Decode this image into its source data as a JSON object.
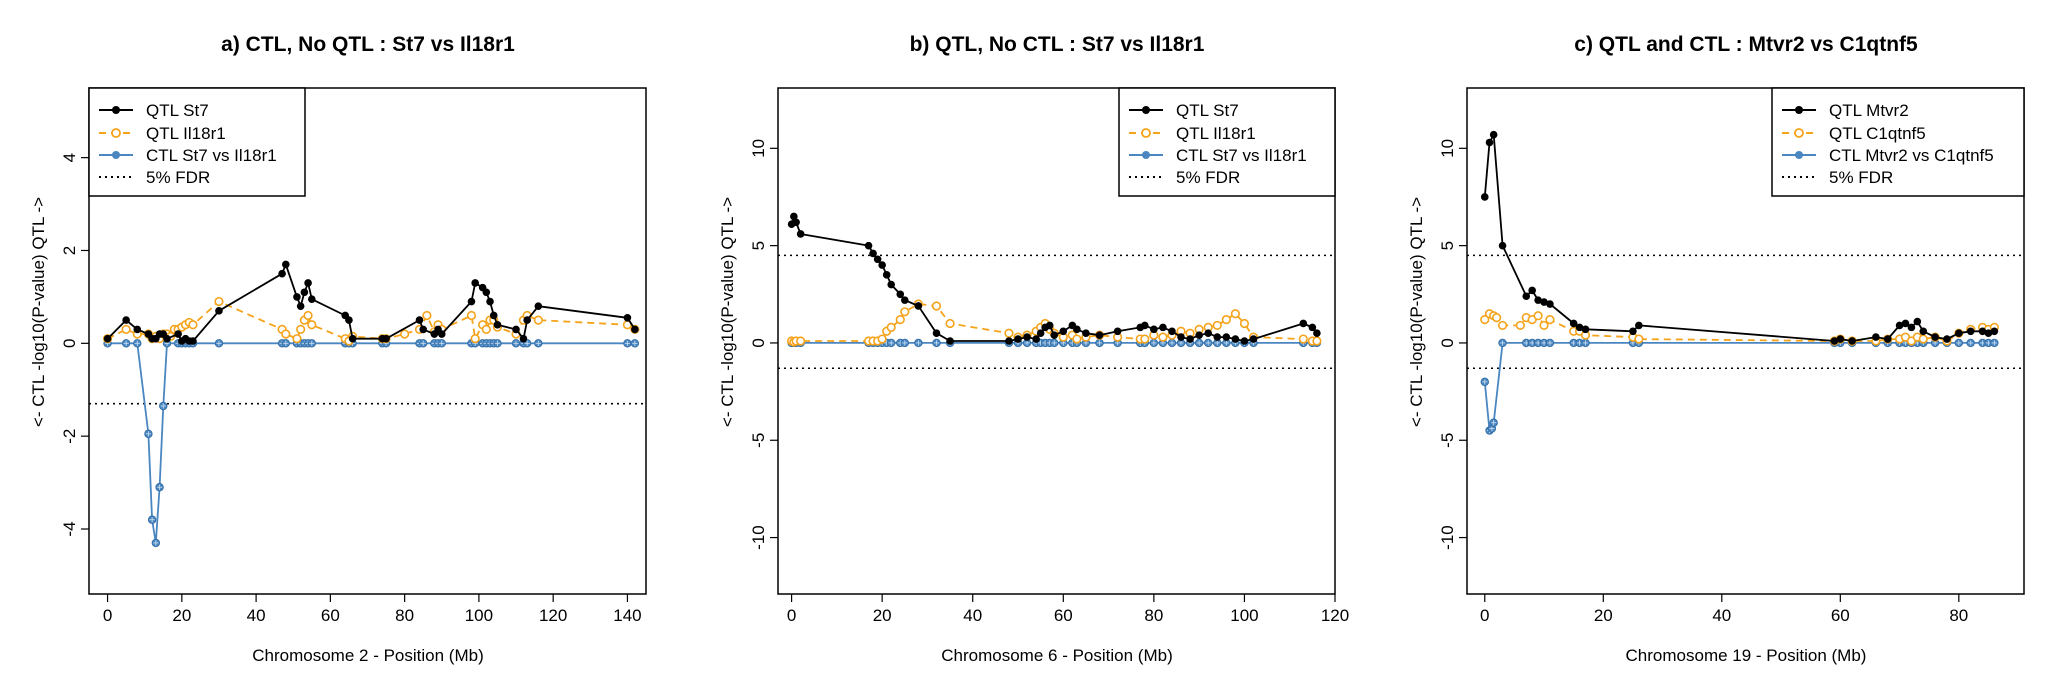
{
  "figure": {
    "ylabel": "<- CTL  -log10(P-value)   QTL ->",
    "legend_fdr": "5% FDR"
  },
  "chart_data": [
    {
      "type": "line",
      "title": "a) CTL, No QTL : St7 vs Il18r1",
      "xlabel": "Chromosome 2 - Position (Mb)",
      "ylabel": "<- CTL  -log10(P-value)   QTL ->",
      "xlim": [
        -5,
        145
      ],
      "ylim": [
        -5.4,
        5.5
      ],
      "xticks": [
        0,
        20,
        40,
        60,
        80,
        100,
        120,
        140
      ],
      "yticks": [
        -4,
        -2,
        0,
        2,
        4
      ],
      "grid": false,
      "legend_position": "top-left",
      "fdr": [
        -1.3
      ],
      "series": [
        {
          "name": "QTL St7",
          "color": "#000000",
          "style": "solid",
          "marker": "filled",
          "x": [
            0,
            5,
            8,
            11,
            12,
            13,
            14,
            15,
            16,
            19,
            20,
            21,
            22,
            23,
            30,
            47,
            48,
            51,
            52,
            53,
            54,
            55,
            64,
            65,
            66,
            74,
            75,
            84,
            85,
            88,
            89,
            90,
            98,
            99,
            101,
            102,
            103,
            104,
            105,
            110,
            112,
            113,
            116,
            140,
            142
          ],
          "y": [
            0.1,
            0.5,
            0.3,
            0.2,
            0.1,
            0.1,
            0.2,
            0.2,
            0.1,
            0.2,
            0.05,
            0.1,
            0.05,
            0.05,
            0.7,
            1.5,
            1.7,
            1.0,
            0.8,
            1.1,
            1.3,
            0.95,
            0.6,
            0.5,
            0.1,
            0.1,
            0.1,
            0.5,
            0.3,
            0.2,
            0.3,
            0.2,
            0.9,
            1.3,
            1.2,
            1.1,
            0.9,
            0.6,
            0.4,
            0.3,
            0.1,
            0.5,
            0.8,
            0.55,
            0.3
          ]
        },
        {
          "name": "QTL Il18r1",
          "color": "#f5a31a",
          "style": "dashed",
          "marker": "open",
          "x": [
            0,
            5,
            8,
            11,
            12,
            13,
            14,
            15,
            16,
            17,
            18,
            19,
            20,
            21,
            22,
            23,
            30,
            47,
            48,
            51,
            52,
            53,
            54,
            55,
            64,
            65,
            66,
            74,
            75,
            80,
            84,
            86,
            88,
            89,
            90,
            98,
            99,
            101,
            102,
            103,
            104,
            105,
            110,
            112,
            113,
            116,
            140,
            142
          ],
          "y": [
            0.1,
            0.3,
            0.2,
            0.2,
            0.1,
            0.15,
            0.1,
            0.2,
            0.2,
            0.15,
            0.3,
            0.3,
            0.35,
            0.4,
            0.45,
            0.4,
            0.9,
            0.3,
            0.2,
            0.1,
            0.3,
            0.5,
            0.6,
            0.4,
            0.1,
            0.05,
            0.15,
            0.1,
            0.1,
            0.2,
            0.3,
            0.6,
            0.25,
            0.4,
            0.3,
            0.6,
            0.1,
            0.4,
            0.3,
            0.5,
            0.5,
            0.35,
            0.2,
            0.5,
            0.6,
            0.5,
            0.4,
            0.3
          ]
        },
        {
          "name": "CTL St7 vs Il18r1",
          "color": "#4a86c0",
          "style": "solid",
          "marker": "crossed",
          "x": [
            0,
            5,
            8,
            11,
            12,
            13,
            14,
            15,
            16,
            19,
            20,
            21,
            22,
            23,
            30,
            47,
            48,
            51,
            52,
            53,
            54,
            55,
            64,
            65,
            66,
            74,
            75,
            84,
            85,
            88,
            89,
            90,
            98,
            99,
            101,
            102,
            103,
            104,
            105,
            110,
            112,
            113,
            116,
            140,
            142
          ],
          "y": [
            0,
            0,
            0,
            -1.95,
            -3.8,
            -4.3,
            -3.1,
            -1.35,
            0,
            0,
            0,
            0,
            0,
            0,
            0,
            0,
            0,
            0,
            0,
            0,
            0,
            0,
            0,
            0,
            0,
            0,
            0,
            0,
            0,
            0,
            0,
            0,
            0,
            0,
            0,
            0,
            0,
            0,
            0,
            0,
            0,
            0,
            0,
            0,
            0
          ]
        }
      ]
    },
    {
      "type": "line",
      "title": "b) QTL, No CTL : St7 vs Il18r1",
      "xlabel": "Chromosome 6 - Position (Mb)",
      "ylabel": "<- CTL  -log10(P-value)   QTL ->",
      "xlim": [
        -3,
        120
      ],
      "ylim": [
        -12.9,
        13.1
      ],
      "xticks": [
        0,
        20,
        40,
        60,
        80,
        100,
        120
      ],
      "yticks": [
        -10,
        -5,
        0,
        5,
        10
      ],
      "grid": false,
      "legend_position": "top-right",
      "fdr": [
        4.5,
        -1.3
      ],
      "series": [
        {
          "name": "QTL St7",
          "color": "#000000",
          "style": "solid",
          "marker": "filled",
          "x": [
            0,
            0.5,
            1,
            2,
            17,
            18,
            19,
            20,
            21,
            22,
            24,
            25,
            28,
            32,
            35,
            48,
            50,
            52,
            54,
            55,
            56,
            57,
            58,
            60,
            62,
            63,
            65,
            68,
            72,
            77,
            78,
            80,
            82,
            84,
            86,
            88,
            90,
            92,
            94,
            96,
            98,
            100,
            102,
            113,
            115,
            116
          ],
          "y": [
            6.1,
            6.5,
            6.2,
            5.6,
            5.0,
            4.6,
            4.3,
            4.0,
            3.5,
            3.0,
            2.5,
            2.2,
            1.9,
            0.5,
            0.1,
            0.1,
            0.2,
            0.3,
            0.2,
            0.5,
            0.8,
            0.9,
            0.4,
            0.6,
            0.9,
            0.7,
            0.5,
            0.4,
            0.6,
            0.8,
            0.9,
            0.7,
            0.8,
            0.6,
            0.3,
            0.2,
            0.4,
            0.5,
            0.3,
            0.3,
            0.2,
            0.1,
            0.2,
            1.0,
            0.8,
            0.5
          ]
        },
        {
          "name": "QTL Il18r1",
          "color": "#f5a31a",
          "style": "dashed",
          "marker": "open",
          "x": [
            0,
            0.5,
            1,
            2,
            17,
            18,
            19,
            20,
            21,
            22,
            24,
            25,
            28,
            32,
            35,
            48,
            50,
            52,
            54,
            55,
            56,
            57,
            58,
            60,
            62,
            63,
            65,
            68,
            72,
            77,
            78,
            80,
            82,
            84,
            86,
            88,
            90,
            92,
            94,
            96,
            98,
            100,
            102,
            113,
            115,
            116
          ],
          "y": [
            0.1,
            0.05,
            0.1,
            0.1,
            0.1,
            0.1,
            0.1,
            0.2,
            0.6,
            0.8,
            1.2,
            1.6,
            2.0,
            1.9,
            1.0,
            0.5,
            0.3,
            0.4,
            0.6,
            0.8,
            1.0,
            0.7,
            0.5,
            0.3,
            0.4,
            0.2,
            0.3,
            0.4,
            0.3,
            0.2,
            0.2,
            0.4,
            0.3,
            0.4,
            0.6,
            0.5,
            0.7,
            0.8,
            0.9,
            1.2,
            1.5,
            1.0,
            0.3,
            0.2,
            0.1,
            0.1
          ]
        },
        {
          "name": "CTL St7 vs Il18r1",
          "color": "#4a86c0",
          "style": "solid",
          "marker": "crossed",
          "x": [
            0,
            0.5,
            1,
            2,
            17,
            18,
            19,
            20,
            21,
            22,
            24,
            25,
            28,
            32,
            35,
            48,
            50,
            52,
            54,
            55,
            56,
            57,
            58,
            60,
            62,
            63,
            65,
            68,
            72,
            77,
            78,
            80,
            82,
            84,
            86,
            88,
            90,
            92,
            94,
            96,
            98,
            100,
            102,
            113,
            115,
            116
          ],
          "y": [
            0,
            0,
            0,
            0,
            0,
            0,
            0,
            0,
            0,
            0,
            0,
            0,
            0,
            0,
            0,
            0,
            0,
            0,
            0,
            0,
            0,
            0,
            0,
            0,
            0,
            0,
            0,
            0,
            0,
            0,
            0,
            0,
            0,
            0,
            0,
            0,
            0,
            0,
            0,
            0,
            0,
            0,
            0,
            0,
            0,
            0
          ]
        }
      ]
    },
    {
      "type": "line",
      "title": "c) QTL and CTL : Mtvr2 vs C1qtnf5",
      "xlabel": "Chromosome 19 - Position (Mb)",
      "ylabel": "<- CTL  -log10(P-value)   QTL ->",
      "xlim": [
        -3,
        91
      ],
      "ylim": [
        -12.9,
        13.1
      ],
      "xticks": [
        0,
        20,
        40,
        60,
        80
      ],
      "yticks": [
        -10,
        -5,
        0,
        5,
        10
      ],
      "grid": false,
      "legend_position": "top-right",
      "fdr": [
        4.5,
        -1.3
      ],
      "series": [
        {
          "name": "QTL Mtvr2",
          "color": "#000000",
          "style": "solid",
          "marker": "filled",
          "x": [
            0,
            0.8,
            1.5,
            3,
            7,
            8,
            9,
            10,
            11,
            15,
            16,
            17,
            25,
            26,
            59,
            60,
            62,
            66,
            68,
            70,
            71,
            72,
            73,
            74,
            76,
            78,
            80,
            82,
            84,
            85,
            86
          ],
          "y": [
            7.5,
            10.3,
            10.7,
            5.0,
            2.4,
            2.7,
            2.2,
            2.1,
            2.0,
            1.0,
            0.8,
            0.7,
            0.6,
            0.9,
            0.1,
            0.2,
            0.1,
            0.3,
            0.2,
            0.9,
            1.0,
            0.8,
            1.1,
            0.6,
            0.3,
            0.2,
            0.5,
            0.6,
            0.6,
            0.5,
            0.6
          ]
        },
        {
          "name": "QTL C1qtnf5",
          "color": "#f5a31a",
          "style": "dashed",
          "marker": "open",
          "x": [
            0,
            0.8,
            1.5,
            2,
            3,
            6,
            7,
            8,
            9,
            10,
            11,
            15,
            16,
            17,
            25,
            26,
            59,
            60,
            62,
            66,
            68,
            70,
            71,
            72,
            73,
            74,
            76,
            78,
            80,
            82,
            84,
            85,
            86
          ],
          "y": [
            1.2,
            1.5,
            1.4,
            1.3,
            0.9,
            0.9,
            1.3,
            1.2,
            1.4,
            0.9,
            1.2,
            0.6,
            0.6,
            0.4,
            0.3,
            0.2,
            0.1,
            0.2,
            0.1,
            0.1,
            0.2,
            0.2,
            0.3,
            0.1,
            0.3,
            0.2,
            0.3,
            0.1,
            0.5,
            0.7,
            0.8,
            0.7,
            0.8
          ]
        },
        {
          "name": "CTL Mtvr2 vs C1qtnf5",
          "color": "#4a86c0",
          "style": "solid",
          "marker": "crossed",
          "x": [
            0,
            0.8,
            1.2,
            1.5,
            3,
            7,
            8,
            9,
            10,
            11,
            15,
            16,
            17,
            25,
            26,
            59,
            60,
            62,
            66,
            68,
            70,
            71,
            72,
            73,
            74,
            76,
            78,
            80,
            82,
            84,
            85,
            86
          ],
          "y": [
            -2.0,
            -4.5,
            -4.4,
            -4.1,
            0,
            0,
            0,
            0,
            0,
            0,
            0,
            0,
            0,
            0,
            0,
            0,
            0,
            0,
            0,
            0,
            0,
            0,
            0,
            0,
            0,
            0,
            0,
            0,
            0,
            0,
            0,
            0
          ]
        }
      ]
    }
  ]
}
